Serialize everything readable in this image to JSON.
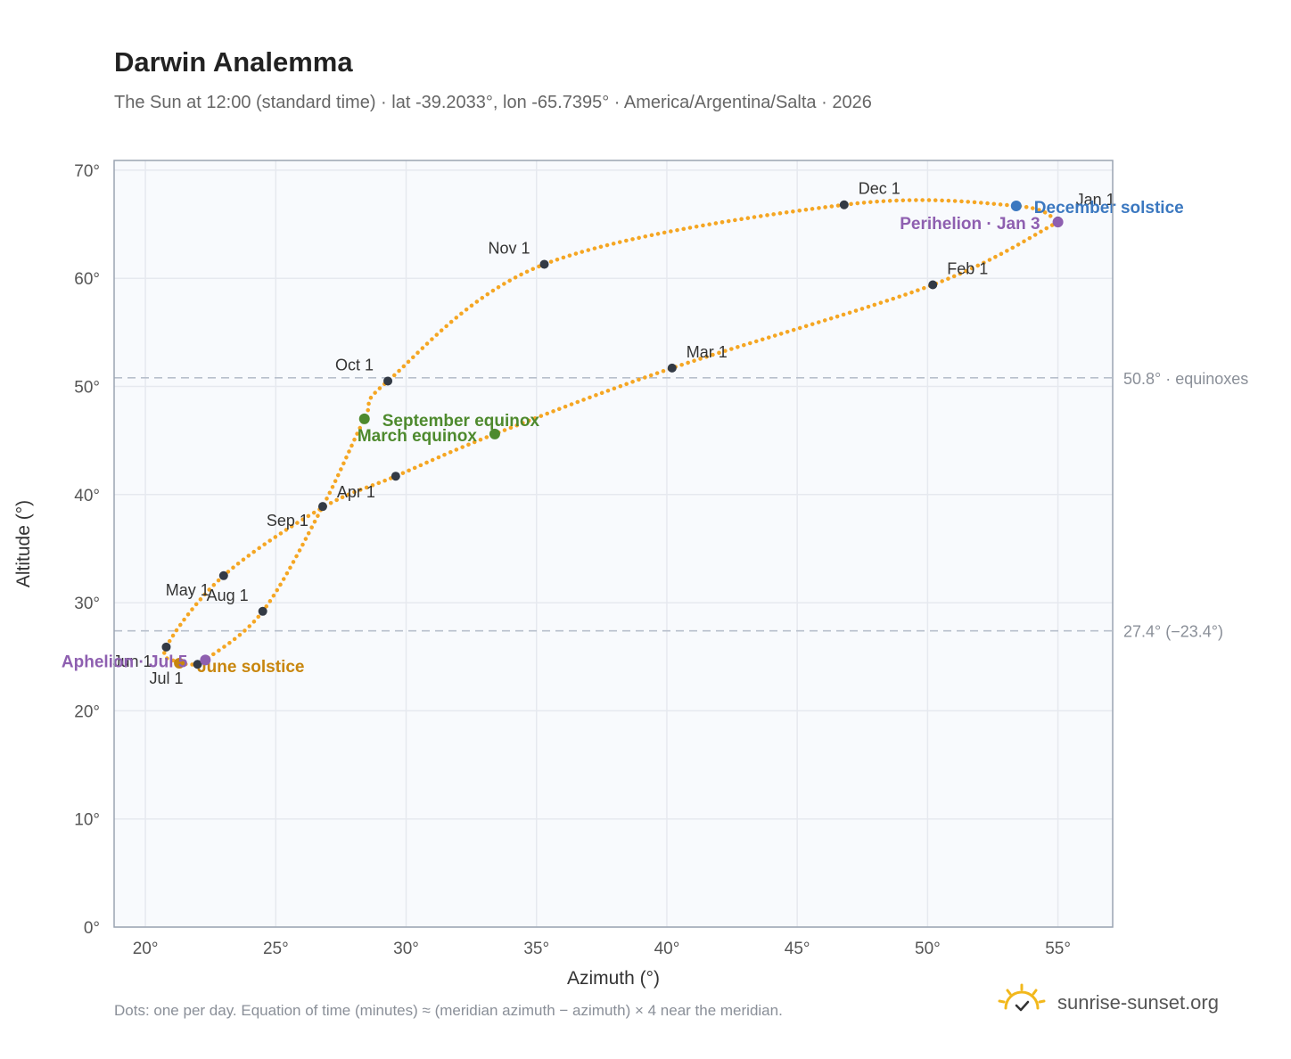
{
  "title": "Darwin Analemma",
  "subtitle": "The Sun at 12:00 (standard time) · lat -39.2033°, lon -65.7395° · America/Argentina/Salta · 2026",
  "footnote": "Dots: one per day. Equation of time (minutes) ≈ (meridian azimuth − azimuth) × 4 near the meridian.",
  "brand": {
    "name": "sunrise-sunset.org",
    "icon": "sun-checkmark-icon"
  },
  "colors": {
    "path": "#f5a623",
    "month_marker": "#333a45",
    "equinox": "#4e8a2e",
    "solstice_june": "#c8860d",
    "solstice_december": "#3b78c0",
    "apsis": "#8e5fb0",
    "grid": "#e6e9ef",
    "plot_bg": "#f8fafd",
    "border": "#9aa4b2",
    "ref_line": "#b8c0cc"
  },
  "chart_data": {
    "type": "scatter",
    "xlabel": "Azimuth (°)",
    "ylabel": "Altitude (°)",
    "xlim": [
      18.8,
      57.1
    ],
    "ylim": [
      0,
      70.9
    ],
    "x_ticks": [
      20,
      25,
      30,
      35,
      40,
      45,
      50,
      55
    ],
    "x_tick_labels": [
      "20°",
      "25°",
      "30°",
      "35°",
      "40°",
      "45°",
      "50°",
      "55°"
    ],
    "y_ticks": [
      0,
      10,
      20,
      30,
      40,
      50,
      60,
      70
    ],
    "y_tick_labels": [
      "0°",
      "10°",
      "20°",
      "30°",
      "40°",
      "50°",
      "60°",
      "70°"
    ],
    "grid": true,
    "path_points": [
      [
        55.0,
        65.2
      ],
      [
        50.2,
        59.4
      ],
      [
        40.2,
        51.7
      ],
      [
        33.4,
        45.6
      ],
      [
        29.6,
        41.7
      ],
      [
        26.8,
        38.8
      ],
      [
        23.0,
        32.5
      ],
      [
        20.8,
        25.9
      ],
      [
        21.3,
        24.5
      ],
      [
        22.0,
        24.3
      ],
      [
        22.3,
        24.7
      ],
      [
        24.5,
        29.2
      ],
      [
        26.8,
        38.9
      ],
      [
        28.4,
        47.0
      ],
      [
        29.3,
        50.5
      ],
      [
        35.3,
        61.3
      ],
      [
        46.8,
        66.8
      ],
      [
        53.4,
        66.7
      ],
      [
        55.0,
        65.2
      ]
    ],
    "month_markers": [
      {
        "label": "Jan 1",
        "x": 55.0,
        "y": 65.3
      },
      {
        "label": "Feb 1",
        "x": 50.2,
        "y": 59.4
      },
      {
        "label": "Mar 1",
        "x": 40.2,
        "y": 51.7
      },
      {
        "label": "Apr 1",
        "x": 29.6,
        "y": 41.7
      },
      {
        "label": "May 1",
        "x": 23.0,
        "y": 32.5
      },
      {
        "label": "Jun 1",
        "x": 20.8,
        "y": 25.9
      },
      {
        "label": "Jul 1",
        "x": 22.0,
        "y": 24.3
      },
      {
        "label": "Aug 1",
        "x": 24.5,
        "y": 29.2
      },
      {
        "label": "Sep 1",
        "x": 26.8,
        "y": 38.9
      },
      {
        "label": "Oct 1",
        "x": 29.3,
        "y": 50.5
      },
      {
        "label": "Nov 1",
        "x": 35.3,
        "y": 61.3
      },
      {
        "label": "Dec 1",
        "x": 46.8,
        "y": 66.8
      }
    ],
    "events": [
      {
        "label": "September equinox",
        "x": 28.4,
        "y": 47.0,
        "kind": "equinox"
      },
      {
        "label": "March equinox",
        "x": 33.4,
        "y": 45.6,
        "kind": "equinox"
      },
      {
        "label": "June solstice",
        "x": 21.3,
        "y": 24.4,
        "kind": "solstice_june"
      },
      {
        "label": "December solstice",
        "x": 53.4,
        "y": 66.7,
        "kind": "solstice_december"
      },
      {
        "label": "Aphelion · Jul 5",
        "x": 22.3,
        "y": 24.7,
        "kind": "apsis"
      },
      {
        "label": "Perihelion · Jan 3",
        "x": 55.0,
        "y": 65.2,
        "kind": "apsis"
      }
    ],
    "reference_lines": [
      {
        "y": 50.8,
        "label": "50.8° · equinoxes"
      },
      {
        "y": 27.4,
        "label": "27.4° (−23.4°)"
      }
    ]
  }
}
